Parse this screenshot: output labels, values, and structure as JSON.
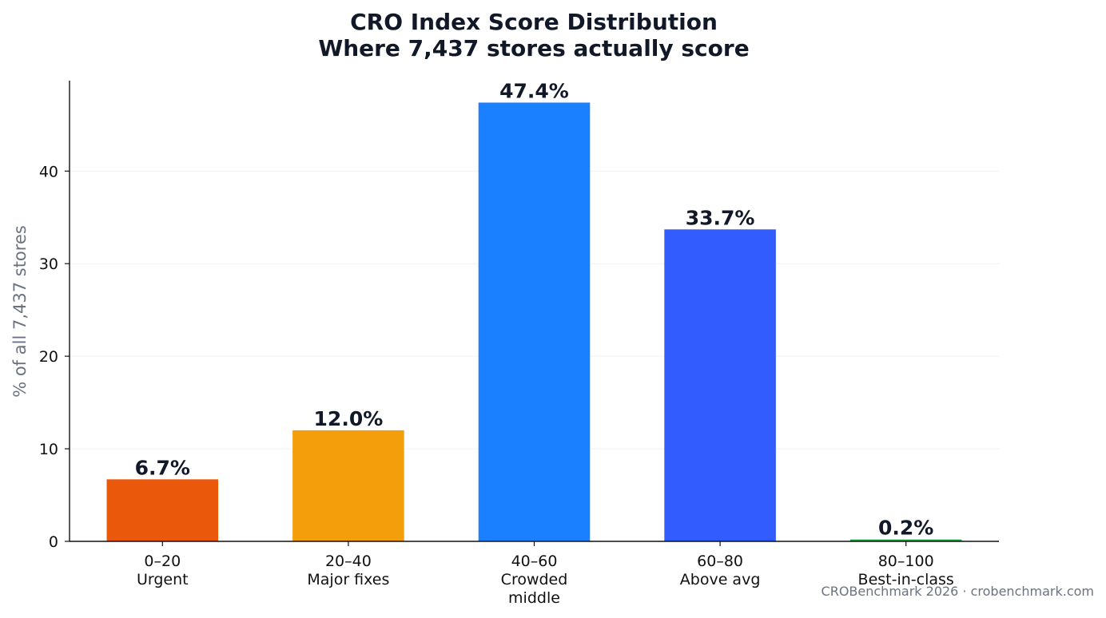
{
  "chart_data": {
    "type": "bar",
    "title": "CRO Index Score Distribution",
    "subtitle": "Where 7,437 stores actually score",
    "ylabel": "% of all 7,437 stores",
    "xlabel": "",
    "ylim": [
      0,
      50
    ],
    "yticks": [
      0,
      10,
      20,
      30,
      40
    ],
    "grid": true,
    "categories": [
      [
        "0–20",
        "Urgent"
      ],
      [
        "20–40",
        "Major fixes"
      ],
      [
        "40–60",
        "Crowded",
        "middle"
      ],
      [
        "60–80",
        "Above avg"
      ],
      [
        "80–100",
        "Best-in-class"
      ]
    ],
    "values": [
      6.7,
      12.0,
      47.4,
      33.7,
      0.2
    ],
    "data_labels": [
      "6.7%",
      "12.0%",
      "47.4%",
      "33.7%",
      "0.2%"
    ],
    "colors": [
      "#ea580c",
      "#f59e0b",
      "#1a80ff",
      "#335cff",
      "#16a34a"
    ]
  },
  "footer": {
    "credit": "CROBenchmark 2026 · crobenchmark.com"
  }
}
